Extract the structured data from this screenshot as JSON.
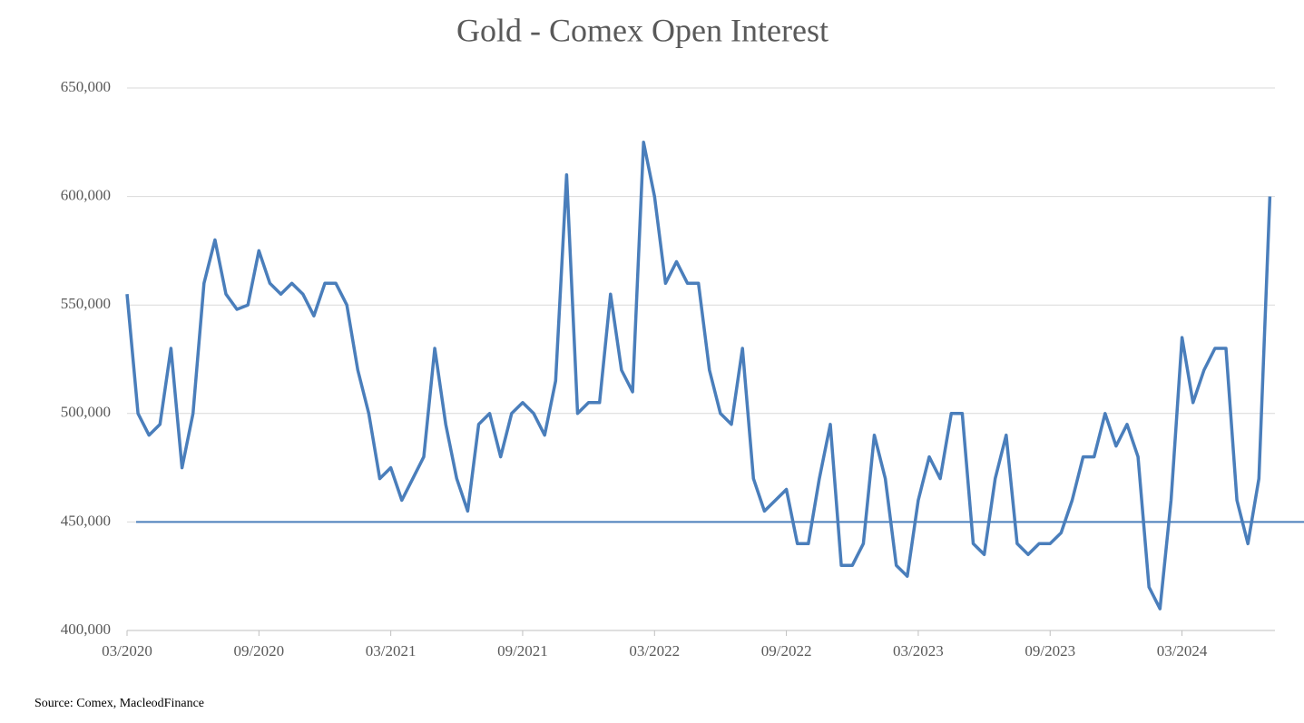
{
  "chart_data": {
    "type": "line",
    "title": "Gold - Comex Open Interest",
    "source": "Source: Comex,  MacleodFinance",
    "categories": [
      "03/2020",
      null,
      null,
      null,
      null,
      null,
      null,
      null,
      null,
      null,
      null,
      null,
      "09/2020",
      null,
      null,
      null,
      null,
      null,
      null,
      null,
      null,
      null,
      null,
      null,
      "03/2021",
      null,
      null,
      null,
      null,
      null,
      null,
      null,
      null,
      null,
      null,
      null,
      "09/2021",
      null,
      null,
      null,
      null,
      null,
      null,
      null,
      null,
      null,
      null,
      null,
      "03/2022",
      null,
      null,
      null,
      null,
      null,
      null,
      null,
      null,
      null,
      null,
      null,
      "09/2022",
      null,
      null,
      null,
      null,
      null,
      null,
      null,
      null,
      null,
      null,
      null,
      "03/2023",
      null,
      null,
      null,
      null,
      null,
      null,
      null,
      null,
      null,
      null,
      null,
      "09/2023",
      null,
      null,
      null,
      null,
      null,
      null,
      null,
      null,
      null,
      null,
      null,
      "03/2024",
      null,
      null,
      null,
      null,
      null,
      null,
      null,
      null
    ],
    "series": [
      {
        "color": "#4a7ebb",
        "values": [
          555000,
          500000,
          490000,
          495000,
          530000,
          475000,
          500000,
          560000,
          580000,
          555000,
          548000,
          550000,
          575000,
          560000,
          555000,
          560000,
          555000,
          545000,
          560000,
          560000,
          550000,
          520000,
          500000,
          470000,
          475000,
          460000,
          470000,
          480000,
          530000,
          495000,
          470000,
          455000,
          495000,
          500000,
          480000,
          500000,
          505000,
          500000,
          490000,
          515000,
          610000,
          500000,
          505000,
          505000,
          555000,
          520000,
          510000,
          625000,
          600000,
          560000,
          570000,
          560000,
          560000,
          520000,
          500000,
          495000,
          530000,
          470000,
          455000,
          460000,
          465000,
          440000,
          440000,
          470000,
          495000,
          430000,
          430000,
          440000,
          490000,
          470000,
          430000,
          425000,
          460000,
          480000,
          470000,
          500000,
          500000,
          440000,
          435000,
          470000,
          490000,
          440000,
          435000,
          440000,
          440000,
          445000,
          460000,
          480000,
          480000,
          500000,
          485000,
          495000,
          480000,
          420000,
          410000,
          460000,
          535000,
          505000,
          520000,
          530000,
          530000,
          460000,
          440000,
          470000,
          600000
        ]
      }
    ],
    "reference_line": 450000,
    "ylim": [
      400000,
      650000
    ],
    "yticks": [
      {
        "value": 400000,
        "label": "400,000"
      },
      {
        "value": 450000,
        "label": "450,000"
      },
      {
        "value": 500000,
        "label": "500,000"
      },
      {
        "value": 550000,
        "label": "550,000"
      },
      {
        "value": 600000,
        "label": "600,000"
      },
      {
        "value": 650000,
        "label": "650,000"
      }
    ],
    "grid": true
  }
}
